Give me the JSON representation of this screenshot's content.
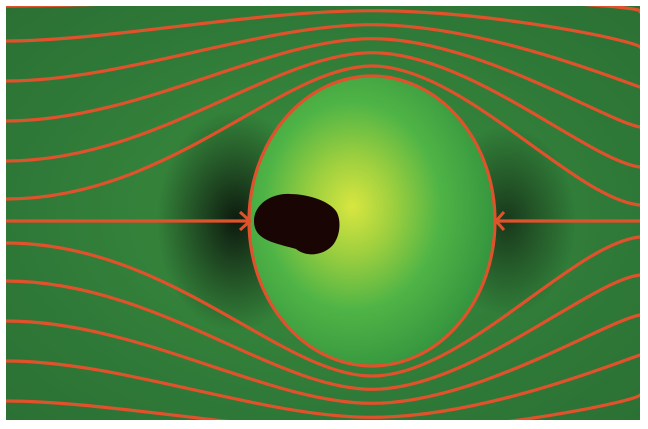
{
  "figure": {
    "field_colors": {
      "outer_green": "#2f7a38",
      "glow_yellow": "#d8e640",
      "bubble_green": "#3fa743",
      "dark_shadow": "#0b140c"
    },
    "streamline_color": "#e0522c",
    "obstacle_color": "#1a0505",
    "obstacle_shape": "drop-shaped blob",
    "streamline_count_above": 6,
    "streamline_count_below": 6,
    "flow_direction": "horizontal",
    "elements": [
      "outer-flow-field",
      "circular-bubble",
      "bright-core",
      "dark-obstacle",
      "streamlines",
      "stagnation-points"
    ]
  }
}
